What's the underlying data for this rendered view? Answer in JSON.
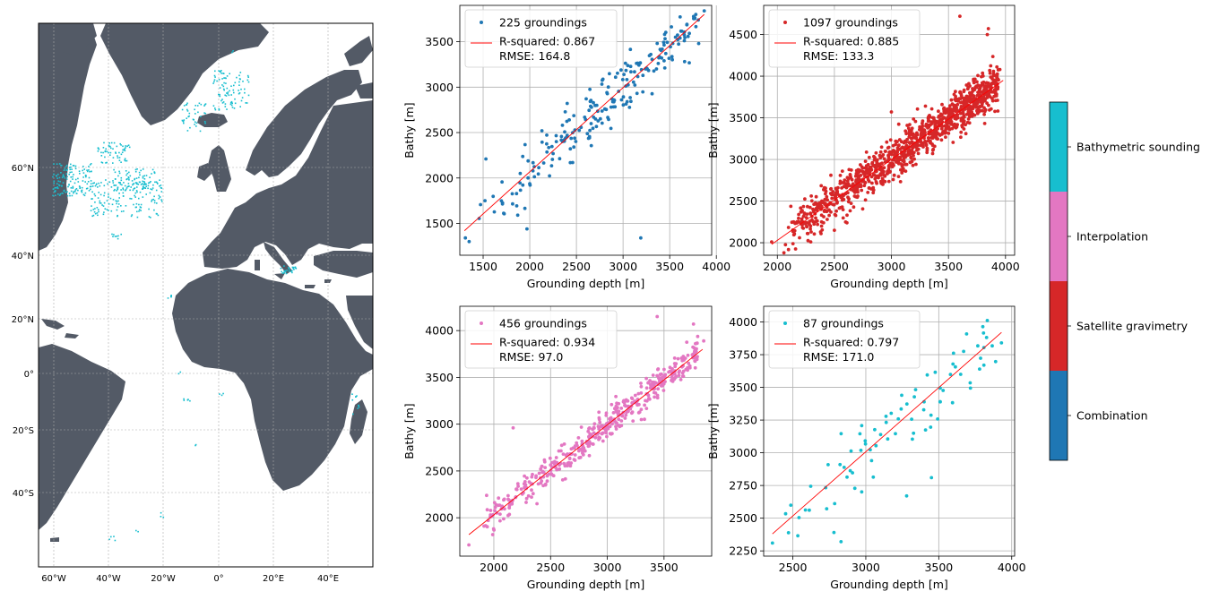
{
  "colors": {
    "land": "#535a66",
    "ocean": "#ffffff",
    "points": "#17becf",
    "fit_line": "#ff0000",
    "grid": "#b0b0b0"
  },
  "map": {
    "lat_labels": [
      "60°N",
      "40°N",
      "20°N",
      "0°",
      "20°S",
      "40°S"
    ],
    "lon_labels": [
      "60°W",
      "40°W",
      "20°W",
      "0°",
      "20°E",
      "40°E"
    ]
  },
  "colorbar": {
    "categories": [
      {
        "label": "Combination",
        "color": "#1f77b4"
      },
      {
        "label": "Satellite gravimetry",
        "color": "#d62728"
      },
      {
        "label": "Interpolation",
        "color": "#e377c2"
      },
      {
        "label": "Bathymetric sounding",
        "color": "#17becf"
      }
    ]
  },
  "chart_data": [
    {
      "type": "scatter",
      "category": "Combination",
      "color": "#1f77b4",
      "legend_points": "225 groundings",
      "legend_stats": [
        "R-squared: 0.867",
        "RMSE: 164.8"
      ],
      "xlabel": "Grounding depth [m]",
      "ylabel": "Bathy [m]",
      "xlim": [
        1250,
        3950
      ],
      "ylim": [
        1150,
        3900
      ],
      "xticks": [
        1500,
        2000,
        2500,
        3000,
        3500,
        4000
      ],
      "yticks": [
        1500,
        2000,
        2500,
        3000,
        3500
      ],
      "n_points": 225,
      "r_squared": 0.867,
      "rmse": 164.8,
      "fit_line": [
        [
          1300,
          1420
        ],
        [
          3870,
          3800
        ]
      ],
      "outliers": [
        [
          1310,
          1340
        ],
        [
          1350,
          1300
        ],
        [
          1530,
          2210
        ],
        [
          1970,
          1440
        ],
        [
          3190,
          1340
        ],
        [
          3870,
          3840
        ],
        [
          3780,
          3800
        ],
        [
          2130,
          2520
        ],
        [
          2460,
          2170
        ]
      ]
    },
    {
      "type": "scatter",
      "category": "Satellite gravimetry",
      "color": "#d62728",
      "legend_points": "1097 groundings",
      "legend_stats": [
        "R-squared: 0.885",
        "RMSE: 133.3"
      ],
      "xlabel": "Grounding depth [m]",
      "ylabel": "Bathy [m]",
      "xlim": [
        1880,
        4080
      ],
      "ylim": [
        1850,
        4850
      ],
      "xticks": [
        2000,
        2500,
        3000,
        3500,
        4000
      ],
      "yticks": [
        2000,
        2500,
        3000,
        3500,
        4000,
        4500
      ],
      "n_points": 1097,
      "r_squared": 0.885,
      "rmse": 133.3,
      "fit_line": [
        [
          1950,
          1980
        ],
        [
          3980,
          3950
        ]
      ],
      "outliers": [
        [
          3600,
          4720
        ],
        [
          3850,
          4570
        ],
        [
          3840,
          4500
        ],
        [
          3950,
          4080
        ],
        [
          2570,
          2860
        ],
        [
          3000,
          3570
        ],
        [
          2500,
          2150
        ],
        [
          1950,
          2010
        ]
      ]
    },
    {
      "type": "scatter",
      "category": "Interpolation",
      "color": "#e377c2",
      "legend_points": "456 groundings",
      "legend_stats": [
        "R-squared: 0.934",
        "RMSE: 97.0"
      ],
      "xlabel": "Grounding depth [m]",
      "ylabel": "Bathy [m]",
      "xlim": [
        1700,
        3920
      ],
      "ylim": [
        1590,
        4260
      ],
      "xticks": [
        2000,
        2500,
        3000,
        3500
      ],
      "yticks": [
        2000,
        2500,
        3000,
        3500,
        4000
      ],
      "n_points": 456,
      "r_squared": 0.934,
      "rmse": 97.0,
      "fit_line": [
        [
          1780,
          1820
        ],
        [
          3840,
          3800
        ]
      ],
      "outliers": [
        [
          3440,
          4150
        ],
        [
          3760,
          4070
        ],
        [
          3850,
          3890
        ],
        [
          2170,
          2960
        ],
        [
          1780,
          1710
        ],
        [
          1990,
          1820
        ],
        [
          3590,
          3480
        ]
      ]
    },
    {
      "type": "scatter",
      "category": "Bathymetric sounding",
      "color": "#17becf",
      "legend_points": "87 groundings",
      "legend_stats": [
        "R-squared: 0.797",
        "RMSE: 171.0"
      ],
      "xlabel": "Grounding depth [m]",
      "ylabel": "Bathy [m]",
      "xlim": [
        2300,
        4020
      ],
      "ylim": [
        2210,
        4120
      ],
      "xticks": [
        2500,
        3000,
        3500,
        4000
      ],
      "yticks": [
        2250,
        2500,
        2750,
        3000,
        3250,
        3500,
        3750,
        4000
      ],
      "n_points": 87,
      "r_squared": 0.797,
      "rmse": 171.0,
      "fit_line": [
        [
          2360,
          2380
        ],
        [
          3930,
          3920
        ]
      ],
      "outliers": [
        [
          2360,
          2310
        ],
        [
          2830,
          2320
        ],
        [
          3280,
          2670
        ],
        [
          3450,
          2810
        ],
        [
          3930,
          3840
        ],
        [
          3780,
          3640
        ]
      ]
    }
  ]
}
